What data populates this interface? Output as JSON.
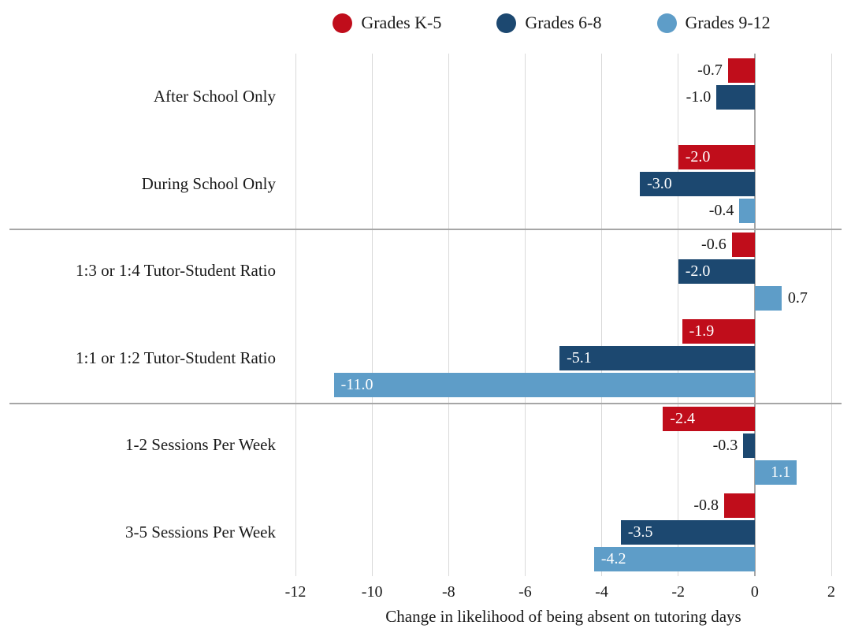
{
  "legend": {
    "items": [
      {
        "label": "Grades K-5",
        "color": "#c00d1b"
      },
      {
        "label": "Grades 6-8",
        "color": "#1c4870"
      },
      {
        "label": "Grades 9-12",
        "color": "#5e9dc8"
      }
    ]
  },
  "chart_data": {
    "type": "bar",
    "orientation": "horizontal",
    "title": "",
    "xlabel": "Change in likelihood of being absent on tutoring days",
    "ylabel": "",
    "xlim": [
      -12,
      2
    ],
    "xticks": [
      -12,
      -10,
      -8,
      -6,
      -4,
      -2,
      0,
      2
    ],
    "grid": true,
    "legend_position": "top",
    "categories": [
      "After School Only",
      "During School Only",
      "1:3 or 1:4 Tutor-Student Ratio",
      "1:1 or 1:2 Tutor-Student Ratio",
      "1-2 Sessions Per Week",
      "3-5 Sessions Per Week"
    ],
    "series": [
      {
        "name": "Grades K-5",
        "color": "#c00d1b",
        "values": [
          -0.7,
          -2.0,
          -0.6,
          -1.9,
          -2.4,
          -0.8
        ],
        "label_pos": [
          "outside",
          "inside",
          "outside",
          "inside",
          "inside",
          "outside"
        ]
      },
      {
        "name": "Grades 6-8",
        "color": "#1c4870",
        "values": [
          -1.0,
          -3.0,
          -2.0,
          -5.1,
          -0.3,
          -3.5
        ],
        "label_pos": [
          "outside",
          "inside",
          "inside",
          "inside",
          "outside",
          "inside"
        ]
      },
      {
        "name": "Grades 9-12",
        "color": "#5e9dc8",
        "values": [
          null,
          -0.4,
          0.7,
          -11.0,
          1.1,
          -4.2
        ],
        "label_pos": [
          null,
          "outside",
          "outside",
          "inside",
          "inside",
          "inside"
        ]
      }
    ],
    "group_separators_after": [
      1,
      3
    ],
    "colors": {
      "gridline": "#d9d9d9",
      "zero_line": "#a6a6a6",
      "separator": "#a6a6a6",
      "label_dark": "#1a1a1a",
      "label_light": "#ffffff",
      "background": "#ffffff"
    }
  }
}
